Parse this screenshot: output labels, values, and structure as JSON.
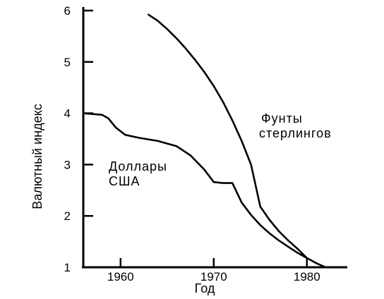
{
  "chart_data": {
    "type": "line",
    "xlabel": "Год",
    "ylabel": "Валютный индекс",
    "xlim": [
      1956,
      1984
    ],
    "ylim": [
      1,
      6
    ],
    "x_ticks": [
      1960,
      1970,
      1980
    ],
    "y_ticks": [
      1,
      2,
      3,
      4,
      5,
      6
    ],
    "grid": false,
    "series": [
      {
        "name": "Доллары США",
        "label_lines": [
          "Доллары",
          "США"
        ],
        "x": [
          1956,
          1958,
          1958.7,
          1959.5,
          1960.5,
          1962,
          1964,
          1966,
          1967.5,
          1969,
          1970,
          1971,
          1972,
          1973,
          1974,
          1975,
          1976,
          1977,
          1978,
          1979,
          1980,
          1981,
          1982
        ],
        "y": [
          4.0,
          3.97,
          3.9,
          3.72,
          3.58,
          3.52,
          3.46,
          3.36,
          3.18,
          2.9,
          2.66,
          2.64,
          2.64,
          2.26,
          2.02,
          1.82,
          1.66,
          1.52,
          1.4,
          1.28,
          1.18,
          1.08,
          1.0
        ]
      },
      {
        "name": "Фунты стерлингов",
        "label_lines": [
          "Фунты",
          "стерлингов"
        ],
        "x": [
          1963,
          1964,
          1965,
          1966,
          1967,
          1968,
          1969,
          1970,
          1971,
          1972,
          1973,
          1974,
          1975,
          1976,
          1977,
          1978,
          1979,
          1980
        ],
        "y": [
          5.92,
          5.8,
          5.64,
          5.46,
          5.26,
          5.04,
          4.8,
          4.53,
          4.22,
          3.86,
          3.46,
          3.0,
          2.18,
          1.92,
          1.7,
          1.52,
          1.36,
          1.18
        ]
      }
    ]
  }
}
